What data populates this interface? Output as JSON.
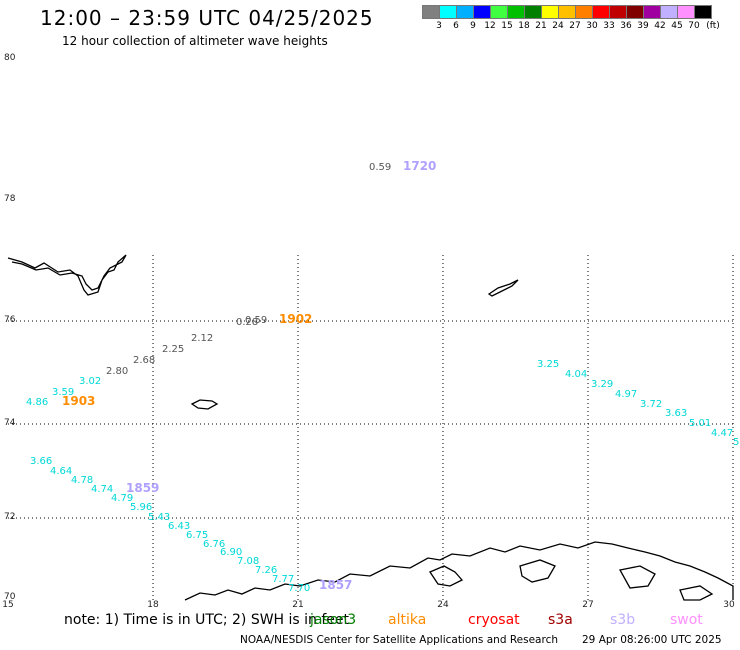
{
  "header": {
    "title": "12:00 – 23:59 UTC 04/25/2025",
    "subtitle": "12 hour collection of altimeter wave heights"
  },
  "color_scale": {
    "labels": [
      "3",
      "6",
      "9",
      "12",
      "15",
      "18",
      "21",
      "24",
      "27",
      "30",
      "33",
      "36",
      "39",
      "42",
      "45",
      "70"
    ],
    "unit": "(ft)",
    "colors": [
      "#808080",
      "#00ffff",
      "#00b0ff",
      "#0000ff",
      "#40ff40",
      "#00c000",
      "#008000",
      "#ffff00",
      "#ffc000",
      "#ff8000",
      "#ff0000",
      "#c00000",
      "#800000",
      "#a000a0",
      "#c0b0ff",
      "#ff90ff",
      "#000000"
    ]
  },
  "axes": {
    "lat_labels": [
      "80",
      "78",
      "76",
      "74",
      "72",
      "70"
    ],
    "lon_labels": [
      "15",
      "18",
      "21",
      "24",
      "27",
      "30"
    ]
  },
  "track_labels": [
    {
      "text": "0.59",
      "color": "#555555"
    },
    {
      "text": "1720",
      "color": "#b0a0ff"
    },
    {
      "text": "0.28",
      "color": "#555555"
    },
    {
      "text": "0.59",
      "color": "#555555"
    },
    {
      "text": "1902",
      "color": "#ff8c00"
    },
    {
      "text": "2.12",
      "color": "#555555"
    },
    {
      "text": "2.25",
      "color": "#555555"
    },
    {
      "text": "2.68",
      "color": "#555555"
    },
    {
      "text": "2.80",
      "color": "#555555"
    },
    {
      "text": "3.02",
      "color": "#00d8d8"
    },
    {
      "text": "3.59",
      "color": "#00d8d8"
    },
    {
      "text": "4.86",
      "color": "#00d8d8"
    },
    {
      "text": "1903",
      "color": "#ff8c00"
    },
    {
      "text": "3.25",
      "color": "#00d8d8"
    },
    {
      "text": "4.04",
      "color": "#00d8d8"
    },
    {
      "text": "3.29",
      "color": "#00d8d8"
    },
    {
      "text": "4.97",
      "color": "#00d8d8"
    },
    {
      "text": "3.72",
      "color": "#00d8d8"
    },
    {
      "text": "3.63",
      "color": "#00d8d8"
    },
    {
      "text": "5.01",
      "color": "#00d8d8"
    },
    {
      "text": "4.47",
      "color": "#00d8d8"
    },
    {
      "text": "5",
      "color": "#00d8d8"
    },
    {
      "text": "3.66",
      "color": "#00d8d8"
    },
    {
      "text": "4.64",
      "color": "#00d8d8"
    },
    {
      "text": "4.78",
      "color": "#00d8d8"
    },
    {
      "text": "4.74",
      "color": "#00d8d8"
    },
    {
      "text": "1859",
      "color": "#b0a0ff"
    },
    {
      "text": "4.79",
      "color": "#00d8d8"
    },
    {
      "text": "5.96",
      "color": "#00d8d8"
    },
    {
      "text": "5.43",
      "color": "#00d8d8"
    },
    {
      "text": "6.43",
      "color": "#00d8d8"
    },
    {
      "text": "6.75",
      "color": "#00d8d8"
    },
    {
      "text": "6.76",
      "color": "#00d8d8"
    },
    {
      "text": "6.90",
      "color": "#00d8d8"
    },
    {
      "text": "7.08",
      "color": "#00d8d8"
    },
    {
      "text": "7.26",
      "color": "#00d8d8"
    },
    {
      "text": "7.77",
      "color": "#00d8d8"
    },
    {
      "text": "7.70",
      "color": "#00d8d8"
    },
    {
      "text": "1857",
      "color": "#b0a0ff"
    }
  ],
  "note": {
    "prefix": "note:  1) Time is in UTC;  2) SWH is in feet",
    "satellites": [
      {
        "name": "jason3",
        "color": "#008000"
      },
      {
        "name": "altika",
        "color": "#ff8c00"
      },
      {
        "name": "cryosat",
        "color": "#ff0000"
      },
      {
        "name": "s3a",
        "color": "#a00000"
      },
      {
        "name": "s3b",
        "color": "#c0b0ff"
      },
      {
        "name": "swot",
        "color": "#ff90ff"
      }
    ]
  },
  "footer": {
    "credit": "NOAA/NESDIS Center for Satellite Applications and Research",
    "timestamp": "29 Apr 08:26:00 UTC 2025"
  }
}
